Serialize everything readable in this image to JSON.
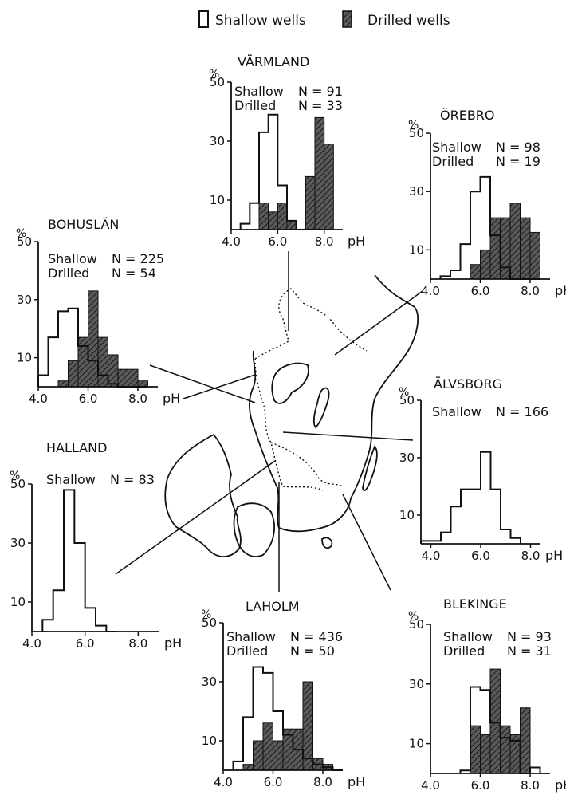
{
  "legend": {
    "shallow_label": "Shallow wells",
    "drilled_label": "Drilled wells",
    "colors": {
      "shallow": "#ffffff",
      "drilled": "#3a3a3a",
      "ink": "#111111"
    }
  },
  "chart_data": [
    {
      "type": "bar",
      "title": "VÄRMLAND",
      "ylabel": "%",
      "xlabel": "pH",
      "ylim": [
        0,
        50
      ],
      "xlim": [
        4.0,
        8.8
      ],
      "yticks": [
        "10",
        "30",
        "50"
      ],
      "xticks": [
        "4.0",
        "6.0",
        "8.0"
      ],
      "bin_width": 0.4,
      "bin_starts": [
        4.4,
        4.8,
        5.2,
        5.6,
        6.0,
        6.4,
        6.8,
        7.2,
        7.6,
        8.0
      ],
      "series": [
        {
          "name": "Shallow",
          "n_label": "N = 91",
          "values": [
            2,
            9,
            33,
            39,
            15,
            3,
            0,
            0,
            0,
            0
          ]
        },
        {
          "name": "Drilled",
          "n_label": "N = 33",
          "values": [
            0,
            0,
            9,
            6,
            9,
            3,
            0,
            18,
            38,
            29
          ]
        }
      ]
    },
    {
      "type": "bar",
      "title": "ÖREBRO",
      "ylabel": "%",
      "xlabel": "pH",
      "ylim": [
        0,
        50
      ],
      "xlim": [
        4.0,
        8.8
      ],
      "yticks": [
        "10",
        "30",
        "50"
      ],
      "xticks": [
        "4.0",
        "6.0",
        "8.0"
      ],
      "bin_width": 0.4,
      "bin_starts": [
        4.4,
        4.8,
        5.2,
        5.6,
        6.0,
        6.4,
        6.8,
        7.2,
        7.6,
        8.0
      ],
      "series": [
        {
          "name": "Shallow",
          "n_label": "N = 98",
          "values": [
            1,
            3,
            12,
            30,
            35,
            15,
            4,
            0,
            0,
            0
          ]
        },
        {
          "name": "Drilled",
          "n_label": "N = 19",
          "values": [
            0,
            0,
            0,
            5,
            10,
            21,
            21,
            26,
            21,
            16
          ]
        }
      ]
    },
    {
      "type": "bar",
      "title": "BOHUSLÄN",
      "ylabel": "%",
      "xlabel": "pH",
      "ylim": [
        0,
        50
      ],
      "xlim": [
        4.0,
        8.8
      ],
      "yticks": [
        "10",
        "30",
        "50"
      ],
      "xticks": [
        "4.0",
        "6.0",
        "8.0"
      ],
      "bin_width": 0.4,
      "bin_starts": [
        4.0,
        4.4,
        4.8,
        5.2,
        5.6,
        6.0,
        6.4,
        6.8,
        7.2,
        7.6,
        8.0
      ],
      "series": [
        {
          "name": "Shallow",
          "n_label": "N = 225",
          "values": [
            4,
            17,
            26,
            27,
            14,
            9,
            4,
            1,
            0,
            0,
            0
          ]
        },
        {
          "name": "Drilled",
          "n_label": "N = 54",
          "values": [
            0,
            0,
            2,
            9,
            17,
            33,
            17,
            11,
            6,
            6,
            2
          ]
        }
      ]
    },
    {
      "type": "bar",
      "title": "ÄLVSBORG",
      "ylabel": "%",
      "xlabel": "pH",
      "ylim": [
        0,
        50
      ],
      "xlim": [
        3.6,
        8.4
      ],
      "yticks": [
        "10",
        "30",
        "50"
      ],
      "xticks": [
        "4.0",
        "6.0",
        "8.0"
      ],
      "bin_width": 0.4,
      "bin_starts": [
        3.6,
        4.0,
        4.4,
        4.8,
        5.2,
        5.6,
        6.0,
        6.4,
        6.8,
        7.2
      ],
      "series": [
        {
          "name": "Shallow",
          "n_label": "N = 166",
          "values": [
            1,
            1,
            4,
            13,
            19,
            19,
            32,
            19,
            5,
            2
          ]
        }
      ]
    },
    {
      "type": "bar",
      "title": "HALLAND",
      "ylabel": "%",
      "xlabel": "pH",
      "ylim": [
        0,
        50
      ],
      "xlim": [
        4.0,
        8.8
      ],
      "yticks": [
        "10",
        "30",
        "50"
      ],
      "xticks": [
        "4.0",
        "6.0",
        "8.0"
      ],
      "bin_width": 0.4,
      "bin_starts": [
        4.4,
        4.8,
        5.2,
        5.6,
        6.0,
        6.4,
        6.8
      ],
      "series": [
        {
          "name": "Shallow",
          "n_label": "N = 83",
          "values": [
            4,
            14,
            48,
            30,
            8,
            2,
            0
          ]
        }
      ]
    },
    {
      "type": "bar",
      "title": "LAHOLM",
      "ylabel": "%",
      "xlabel": "pH",
      "ylim": [
        0,
        50
      ],
      "xlim": [
        4.0,
        8.8
      ],
      "yticks": [
        "10",
        "30",
        "50"
      ],
      "xticks": [
        "4.0",
        "6.0",
        "8.0"
      ],
      "bin_width": 0.4,
      "bin_starts": [
        4.4,
        4.8,
        5.2,
        5.6,
        6.0,
        6.4,
        6.8,
        7.2,
        7.6,
        8.0,
        8.4
      ],
      "series": [
        {
          "name": "Shallow",
          "n_label": "N = 436",
          "values": [
            3,
            18,
            35,
            33,
            20,
            12,
            7,
            4,
            2,
            1,
            0
          ]
        },
        {
          "name": "Drilled",
          "n_label": "N = 50",
          "values": [
            0,
            2,
            10,
            16,
            10,
            14,
            14,
            30,
            4,
            2,
            0
          ]
        }
      ]
    },
    {
      "type": "bar",
      "title": "BLEKINGE",
      "ylabel": "%",
      "xlabel": "pH",
      "ylim": [
        0,
        50
      ],
      "xlim": [
        4.0,
        8.8
      ],
      "yticks": [
        "10",
        "30",
        "50"
      ],
      "xticks": [
        "4.0",
        "6.0",
        "8.0"
      ],
      "bin_width": 0.4,
      "bin_starts": [
        5.2,
        5.6,
        6.0,
        6.4,
        6.8,
        7.2,
        7.6,
        8.0
      ],
      "series": [
        {
          "name": "Shallow",
          "n_label": "N = 93",
          "values": [
            1,
            29,
            28,
            17,
            12,
            11,
            0,
            2
          ]
        },
        {
          "name": "Drilled",
          "n_label": "N = 31",
          "values": [
            0,
            16,
            13,
            35,
            16,
            13,
            22,
            0
          ]
        }
      ]
    }
  ]
}
